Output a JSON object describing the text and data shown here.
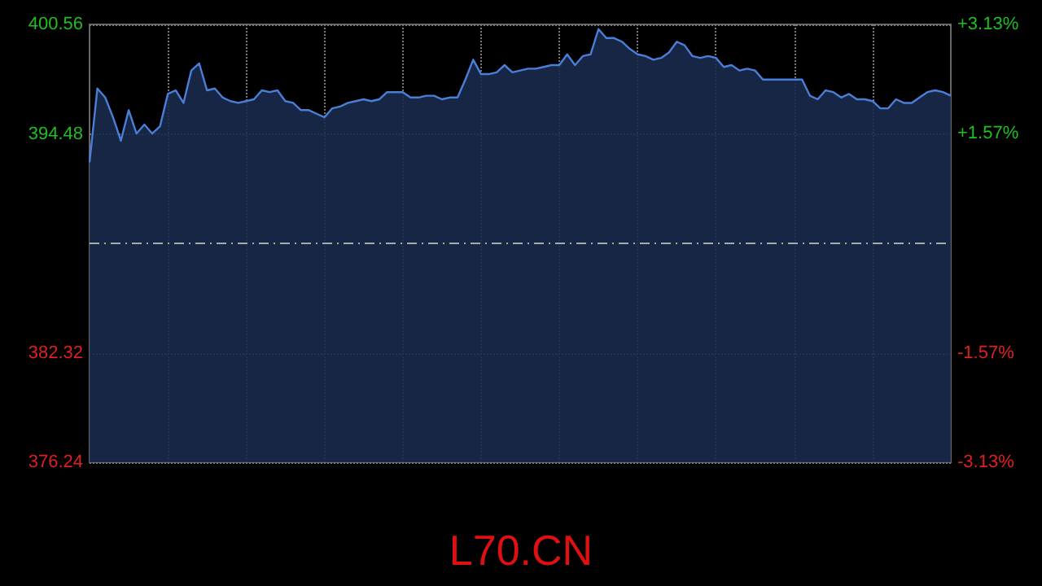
{
  "chart_data": {
    "type": "area",
    "title": "L70.CN",
    "categories": [
      null,
      null,
      null,
      null,
      null,
      null,
      null,
      null,
      null,
      null,
      null,
      null,
      null,
      null,
      null,
      null,
      null,
      null,
      null,
      null,
      null,
      null,
      null,
      null,
      null,
      null,
      null,
      null,
      null,
      null,
      null,
      null,
      null,
      null,
      null,
      null,
      null,
      null,
      null,
      null,
      null,
      null,
      null,
      null,
      null,
      null,
      null,
      null,
      null,
      null,
      null,
      null,
      null,
      null,
      null,
      null,
      null,
      null,
      null,
      null,
      null,
      null,
      null,
      null,
      null,
      null,
      null,
      null,
      null,
      null,
      null,
      null,
      null,
      null,
      null,
      null,
      null,
      null,
      null,
      null,
      null,
      null,
      null,
      null,
      null,
      null,
      null,
      null,
      null,
      null,
      null,
      null,
      null,
      null,
      null,
      null,
      null,
      null,
      null,
      null,
      null,
      null,
      null,
      null,
      null,
      null,
      null,
      null,
      null,
      null,
      null
    ],
    "series": [
      {
        "color": "#4a7fd8",
        "values": [
          392.9,
          397.0,
          396.5,
          395.4,
          394.1,
          395.8,
          394.5,
          395.0,
          394.5,
          394.9,
          396.7,
          396.9,
          396.2,
          398.0,
          398.4,
          396.9,
          397.0,
          396.5,
          396.3,
          396.2,
          396.3,
          396.4,
          396.9,
          396.8,
          396.9,
          396.3,
          396.2,
          395.8,
          395.8,
          395.6,
          395.4,
          395.9,
          396.0,
          396.2,
          396.3,
          396.4,
          396.3,
          396.4,
          396.8,
          396.8,
          396.8,
          396.5,
          396.5,
          396.6,
          396.6,
          396.4,
          396.5,
          396.5,
          397.5,
          398.6,
          397.8,
          397.8,
          397.9,
          398.3,
          397.9,
          398.0,
          398.1,
          398.1,
          398.2,
          398.3,
          398.3,
          398.9,
          398.3,
          398.8,
          398.9,
          400.3,
          399.8,
          399.8,
          399.6,
          399.2,
          398.9,
          398.8,
          398.6,
          398.7,
          399.0,
          399.6,
          399.4,
          398.8,
          398.7,
          398.8,
          398.7,
          398.2,
          398.3,
          398.0,
          398.1,
          398.0,
          397.5,
          397.5,
          397.5,
          397.5,
          397.5,
          397.5,
          396.6,
          396.4,
          396.9,
          396.8,
          396.5,
          396.7,
          396.4,
          396.4,
          396.3,
          395.9,
          395.9,
          396.4,
          396.2,
          396.2,
          396.5,
          396.8,
          396.9,
          396.8,
          396.6
        ]
      }
    ],
    "ylim": [
      376.24,
      400.56
    ],
    "yticks": [
      376.24,
      382.32,
      394.48,
      400.56
    ],
    "y2lim": [
      -3.13,
      3.13
    ],
    "y2ticks": [
      {
        "value": -3.13,
        "label": "-3.13%"
      },
      {
        "value": -1.57,
        "label": "-1.57%"
      },
      {
        "value": 1.57,
        "label": "+1.57%"
      },
      {
        "value": 3.13,
        "label": "+3.13%"
      }
    ],
    "ref_lines": [
      {
        "axis": "y",
        "value": 388.4,
        "color": "#aaaaaa",
        "line_style": "dashed"
      }
    ],
    "grid": true
  }
}
